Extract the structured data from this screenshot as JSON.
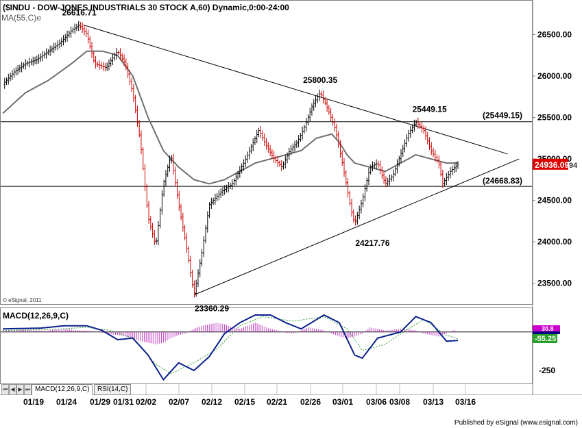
{
  "chart_data": {
    "type": "candlestick",
    "title": "($INDU - DOW-JONES INDUSTRIALS 30 STOCK A,60) Dynamic,0:00-24:00",
    "indicator_label": "MA(55,C)e",
    "watermark": "© eSignal, 2011",
    "y_axis_ticks": [
      "26500.00",
      "26000.00",
      "25500.00",
      "25000.00",
      "24500.00",
      "24000.00",
      "23500.00"
    ],
    "x_axis_ticks": [
      "01/19",
      "01/24",
      "01/29",
      "01/31",
      "02/02",
      "02/07",
      "02/12",
      "02/15",
      "02/21",
      "02/26",
      "03/01",
      "03/06",
      "03/08",
      "03/13",
      "03/16"
    ],
    "ylim": [
      23250,
      26900
    ],
    "current_price": "24936.09",
    "current_price_suffix": "94",
    "support_label": "(24668.83)",
    "resistance_label": "(25449.15)",
    "support_value": 24668.83,
    "resistance_value": 25449.15,
    "annotations": [
      {
        "text": "26616.71",
        "value": 26616.71
      },
      {
        "text": "23360.29",
        "value": 23360.29
      },
      {
        "text": "25800.35",
        "value": 25800.35
      },
      {
        "text": "24217.76",
        "value": 24217.76
      },
      {
        "text": "25449.15",
        "value": 25449.15
      }
    ],
    "price_path": [
      [
        0,
        25900
      ],
      [
        3,
        26050
      ],
      [
        6,
        26150
      ],
      [
        9,
        26200
      ],
      [
        12,
        26300
      ],
      [
        15,
        26400
      ],
      [
        18,
        26550
      ],
      [
        20,
        26616.71
      ],
      [
        22,
        26500
      ],
      [
        24,
        26150
      ],
      [
        27,
        26100
      ],
      [
        30,
        26300
      ],
      [
        32,
        26150
      ],
      [
        34,
        25800
      ],
      [
        36,
        25200
      ],
      [
        38,
        24300
      ],
      [
        40,
        23950
      ],
      [
        42,
        24700
      ],
      [
        44,
        25050
      ],
      [
        46,
        24450
      ],
      [
        48,
        23950
      ],
      [
        50,
        23360.29
      ],
      [
        52,
        23850
      ],
      [
        54,
        24450
      ],
      [
        57,
        24600
      ],
      [
        60,
        24700
      ],
      [
        63,
        24950
      ],
      [
        65,
        25150
      ],
      [
        67,
        25350
      ],
      [
        69,
        25150
      ],
      [
        71,
        25000
      ],
      [
        73,
        24900
      ],
      [
        75,
        25100
      ],
      [
        77,
        25200
      ],
      [
        79,
        25400
      ],
      [
        81,
        25650
      ],
      [
        83,
        25800.35
      ],
      [
        85,
        25600
      ],
      [
        87,
        25350
      ],
      [
        89,
        24900
      ],
      [
        91,
        24400
      ],
      [
        92,
        24217.76
      ],
      [
        94,
        24500
      ],
      [
        96,
        24900
      ],
      [
        98,
        24950
      ],
      [
        100,
        24700
      ],
      [
        102,
        24800
      ],
      [
        104,
        25050
      ],
      [
        106,
        25300
      ],
      [
        108,
        25449.15
      ],
      [
        110,
        25350
      ],
      [
        112,
        25100
      ],
      [
        114,
        24950
      ],
      [
        115,
        24700
      ],
      [
        117,
        24850
      ],
      [
        119,
        24936.09
      ]
    ],
    "ma_path": [
      [
        0,
        25550
      ],
      [
        6,
        25800
      ],
      [
        12,
        25950
      ],
      [
        18,
        26150
      ],
      [
        22,
        26300
      ],
      [
        26,
        26300
      ],
      [
        30,
        26250
      ],
      [
        34,
        26000
      ],
      [
        38,
        25500
      ],
      [
        42,
        25100
      ],
      [
        46,
        24900
      ],
      [
        50,
        24750
      ],
      [
        54,
        24700
      ],
      [
        58,
        24750
      ],
      [
        62,
        24850
      ],
      [
        66,
        24950
      ],
      [
        70,
        25000
      ],
      [
        74,
        25050
      ],
      [
        78,
        25100
      ],
      [
        82,
        25250
      ],
      [
        86,
        25300
      ],
      [
        88,
        25200
      ],
      [
        90,
        25050
      ],
      [
        92,
        24950
      ],
      [
        96,
        24900
      ],
      [
        100,
        24850
      ],
      [
        104,
        24950
      ],
      [
        108,
        25050
      ],
      [
        112,
        25000
      ],
      [
        116,
        24950
      ],
      [
        119,
        24950
      ]
    ],
    "trendlines": [
      {
        "from": [
          21,
          26616.71
        ],
        "to": [
          132,
          25060
        ]
      },
      {
        "from": [
          50,
          23360.29
        ],
        "to": [
          135,
          25000
        ]
      }
    ],
    "macd": {
      "label": "MACD(12,26,9,C)",
      "ticks": [
        "-250"
      ],
      "value_top": "30.8",
      "value_bottom": "-55.25",
      "ylim": [
        -330,
        150
      ],
      "macd_path": [
        [
          0,
          20
        ],
        [
          10,
          25
        ],
        [
          16,
          40
        ],
        [
          22,
          40
        ],
        [
          26,
          10
        ],
        [
          30,
          -50
        ],
        [
          34,
          -40
        ],
        [
          38,
          -150
        ],
        [
          42,
          -310
        ],
        [
          46,
          -200
        ],
        [
          50,
          -250
        ],
        [
          54,
          -160
        ],
        [
          58,
          -10
        ],
        [
          62,
          60
        ],
        [
          66,
          110
        ],
        [
          70,
          110
        ],
        [
          74,
          60
        ],
        [
          78,
          20
        ],
        [
          82,
          80
        ],
        [
          84,
          110
        ],
        [
          88,
          60
        ],
        [
          92,
          -150
        ],
        [
          94,
          -170
        ],
        [
          98,
          -40
        ],
        [
          104,
          0
        ],
        [
          108,
          100
        ],
        [
          112,
          60
        ],
        [
          116,
          -60
        ],
        [
          119,
          -55.25
        ]
      ],
      "signal_path": [
        [
          0,
          10
        ],
        [
          12,
          15
        ],
        [
          22,
          30
        ],
        [
          28,
          10
        ],
        [
          34,
          -40
        ],
        [
          40,
          -210
        ],
        [
          44,
          -270
        ],
        [
          50,
          -200
        ],
        [
          56,
          -110
        ],
        [
          62,
          40
        ],
        [
          68,
          100
        ],
        [
          76,
          70
        ],
        [
          84,
          100
        ],
        [
          90,
          20
        ],
        [
          94,
          -120
        ],
        [
          100,
          -80
        ],
        [
          106,
          20
        ],
        [
          110,
          80
        ],
        [
          116,
          -20
        ],
        [
          119,
          -45
        ]
      ],
      "histogram": [
        [
          0,
          5
        ],
        [
          2,
          8
        ],
        [
          4,
          10
        ],
        [
          6,
          15
        ],
        [
          8,
          10
        ],
        [
          10,
          8
        ],
        [
          12,
          10
        ],
        [
          14,
          15
        ],
        [
          16,
          20
        ],
        [
          18,
          15
        ],
        [
          20,
          10
        ],
        [
          22,
          8
        ],
        [
          24,
          5
        ],
        [
          26,
          -5
        ],
        [
          28,
          -15
        ],
        [
          30,
          -20
        ],
        [
          32,
          -30
        ],
        [
          34,
          -40
        ],
        [
          36,
          -60
        ],
        [
          38,
          -70
        ],
        [
          40,
          -80
        ],
        [
          42,
          -70
        ],
        [
          44,
          -40
        ],
        [
          46,
          -20
        ],
        [
          48,
          -10
        ],
        [
          50,
          20
        ],
        [
          52,
          40
        ],
        [
          54,
          50
        ],
        [
          56,
          60
        ],
        [
          58,
          50
        ],
        [
          60,
          30
        ],
        [
          62,
          20
        ],
        [
          64,
          40
        ],
        [
          66,
          60
        ],
        [
          68,
          40
        ],
        [
          70,
          20
        ],
        [
          72,
          10
        ],
        [
          74,
          -5
        ],
        [
          76,
          -10
        ],
        [
          78,
          10
        ],
        [
          80,
          30
        ],
        [
          82,
          20
        ],
        [
          84,
          10
        ],
        [
          86,
          -10
        ],
        [
          88,
          -30
        ],
        [
          90,
          -40
        ],
        [
          92,
          -30
        ],
        [
          94,
          -10
        ],
        [
          96,
          30
        ],
        [
          98,
          20
        ],
        [
          100,
          10
        ],
        [
          102,
          15
        ],
        [
          104,
          20
        ],
        [
          106,
          15
        ],
        [
          108,
          10
        ],
        [
          110,
          -10
        ],
        [
          112,
          -20
        ],
        [
          114,
          -30
        ],
        [
          116,
          -10
        ],
        [
          118,
          15
        ]
      ]
    }
  },
  "tabs": [
    "MACD(12,26,9,C)",
    "RSI(14,C)"
  ],
  "footer": "Published by eSignal (www.esignal.com)"
}
